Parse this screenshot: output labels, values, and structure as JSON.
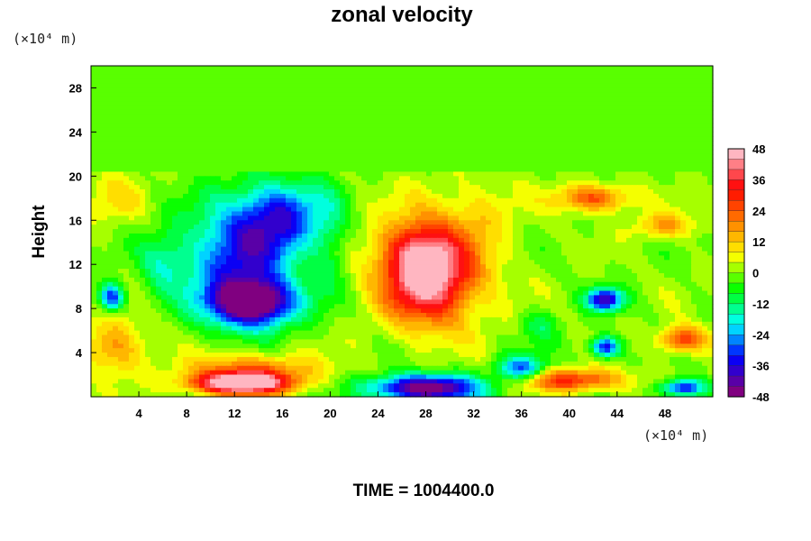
{
  "chart_data": {
    "type": "heatmap",
    "title": "zonal velocity",
    "ylabel": "Height",
    "xlabel": "",
    "x_unit": "(×10⁴ m)",
    "y_unit": "(×10⁴ m)",
    "footer": "TIME = 1004400.0",
    "xlim": [
      0,
      52
    ],
    "ylim": [
      0,
      30
    ],
    "x_ticks": [
      "4",
      "8",
      "12",
      "16",
      "20",
      "24",
      "28",
      "32",
      "36",
      "40",
      "44",
      "48"
    ],
    "y_ticks": [
      "4",
      "8",
      "12",
      "16",
      "20",
      "24",
      "28"
    ],
    "colorbar": {
      "min": -48,
      "max": 48,
      "step": 4,
      "ticks": [
        "48",
        "36",
        "24",
        "12",
        "0",
        "-12",
        "-24",
        "-36",
        "-48"
      ],
      "colormap": [
        "#800080",
        "#0000ff",
        "#00ffff",
        "#00ff00",
        "#ffff00",
        "#ff8000",
        "#ff0000",
        "#ffb6c1"
      ]
    },
    "background_value": 0,
    "features": [
      {
        "x": 13.5,
        "y": 8.5,
        "sx": 3.5,
        "sy": 2.0,
        "value": -48
      },
      {
        "x": 12.5,
        "y": 12.5,
        "sx": 4.5,
        "sy": 5.0,
        "value": -34
      },
      {
        "x": 16.0,
        "y": 16.5,
        "sx": 3.5,
        "sy": 3.0,
        "value": -28
      },
      {
        "x": 6.0,
        "y": 12.0,
        "sx": 2.0,
        "sy": 3.0,
        "value": -12
      },
      {
        "x": 20.0,
        "y": 14.0,
        "sx": 1.5,
        "sy": 5.0,
        "value": -8
      },
      {
        "x": 1.7,
        "y": 9.0,
        "sx": 1.0,
        "sy": 1.2,
        "value": -34
      },
      {
        "x": 28.0,
        "y": 11.0,
        "sx": 3.5,
        "sy": 4.0,
        "value": 40
      },
      {
        "x": 29.0,
        "y": 12.0,
        "sx": 5.0,
        "sy": 5.5,
        "value": 16
      },
      {
        "x": 27.0,
        "y": 13.5,
        "sx": 2.5,
        "sy": 2.0,
        "value": 10
      },
      {
        "x": 12.5,
        "y": 1.2,
        "sx": 4.0,
        "sy": 1.0,
        "value": 54
      },
      {
        "x": 13.5,
        "y": 2.5,
        "sx": 5.5,
        "sy": 1.5,
        "value": 20
      },
      {
        "x": 28.0,
        "y": 0.8,
        "sx": 4.5,
        "sy": 1.2,
        "value": -52
      },
      {
        "x": 36.0,
        "y": 2.5,
        "sx": 2.0,
        "sy": 1.2,
        "value": -30
      },
      {
        "x": 37.5,
        "y": 6.5,
        "sx": 1.5,
        "sy": 1.5,
        "value": -10
      },
      {
        "x": 43.0,
        "y": 8.8,
        "sx": 1.5,
        "sy": 1.0,
        "value": -40
      },
      {
        "x": 43.0,
        "y": 4.5,
        "sx": 1.2,
        "sy": 0.9,
        "value": -36
      },
      {
        "x": 40.0,
        "y": 1.5,
        "sx": 4.5,
        "sy": 1.0,
        "value": 30
      },
      {
        "x": 49.5,
        "y": 5.2,
        "sx": 2.0,
        "sy": 1.2,
        "value": 28
      },
      {
        "x": 49.5,
        "y": 0.8,
        "sx": 1.8,
        "sy": 0.8,
        "value": -36
      },
      {
        "x": 42.0,
        "y": 18.0,
        "sx": 3.0,
        "sy": 1.2,
        "value": 26
      },
      {
        "x": 48.0,
        "y": 15.5,
        "sx": 2.5,
        "sy": 1.2,
        "value": 16
      },
      {
        "x": 33.0,
        "y": 17.0,
        "sx": 3.0,
        "sy": 2.5,
        "value": 6
      },
      {
        "x": 2.0,
        "y": 18.0,
        "sx": 2.5,
        "sy": 2.5,
        "value": 8
      },
      {
        "x": 2.0,
        "y": 4.5,
        "sx": 2.5,
        "sy": 2.5,
        "value": 18
      }
    ]
  }
}
